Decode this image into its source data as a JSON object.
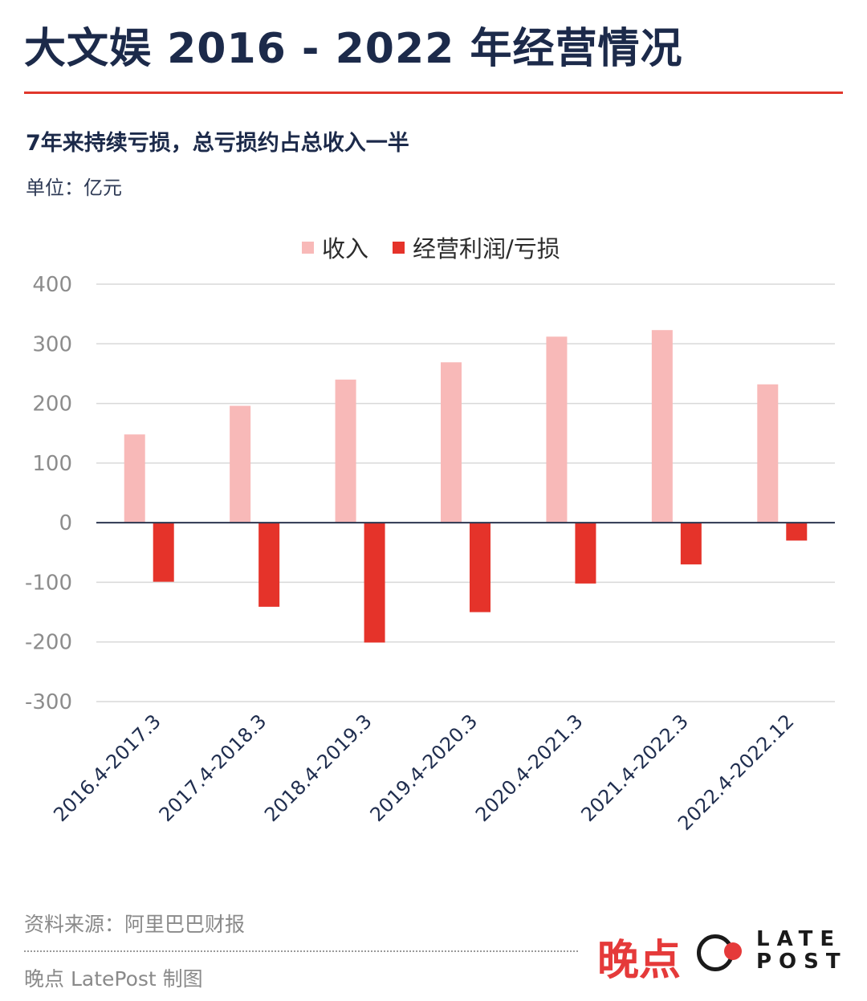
{
  "header": {
    "title": "大文娱 2016 - 2022 年经营情况",
    "subtitle": "7年来持续亏损，总亏损约占总收入一半",
    "unit": "单位：亿元"
  },
  "colors": {
    "accent": "#e0372c",
    "revenue": "#f8b9b8",
    "profit": "#e5332a",
    "axis_text": "#8c8c8c",
    "grid": "#d9d9d9",
    "zero_line": "#2c3650"
  },
  "chart_data": {
    "type": "bar",
    "categories": [
      "2016.4-2017.3",
      "2017.4-2018.3",
      "2018.4-2019.3",
      "2019.4-2020.3",
      "2020.4-2021.3",
      "2021.4-2022.3",
      "2022.4-2022.12"
    ],
    "series": [
      {
        "name": "收入",
        "values": [
          148,
          196,
          240,
          269,
          312,
          323,
          232
        ]
      },
      {
        "name": "经营利润/亏损",
        "values": [
          -99,
          -141,
          -201,
          -150,
          -102,
          -70,
          -30
        ]
      }
    ],
    "ylim": [
      -300,
      400
    ],
    "yticks": [
      400,
      300,
      200,
      100,
      0,
      -100,
      -200,
      -300
    ],
    "xlabel": "",
    "ylabel": "",
    "grid": true,
    "legend": "top-center"
  },
  "footer": {
    "source": "资料来源：阿里巴巴财报",
    "credit": "晚点 LatePost 制图",
    "logo_cn": "晚点",
    "logo_en_line1": "LATE",
    "logo_en_line2": "POST",
    "logo_icon": "ring-dot-icon"
  }
}
